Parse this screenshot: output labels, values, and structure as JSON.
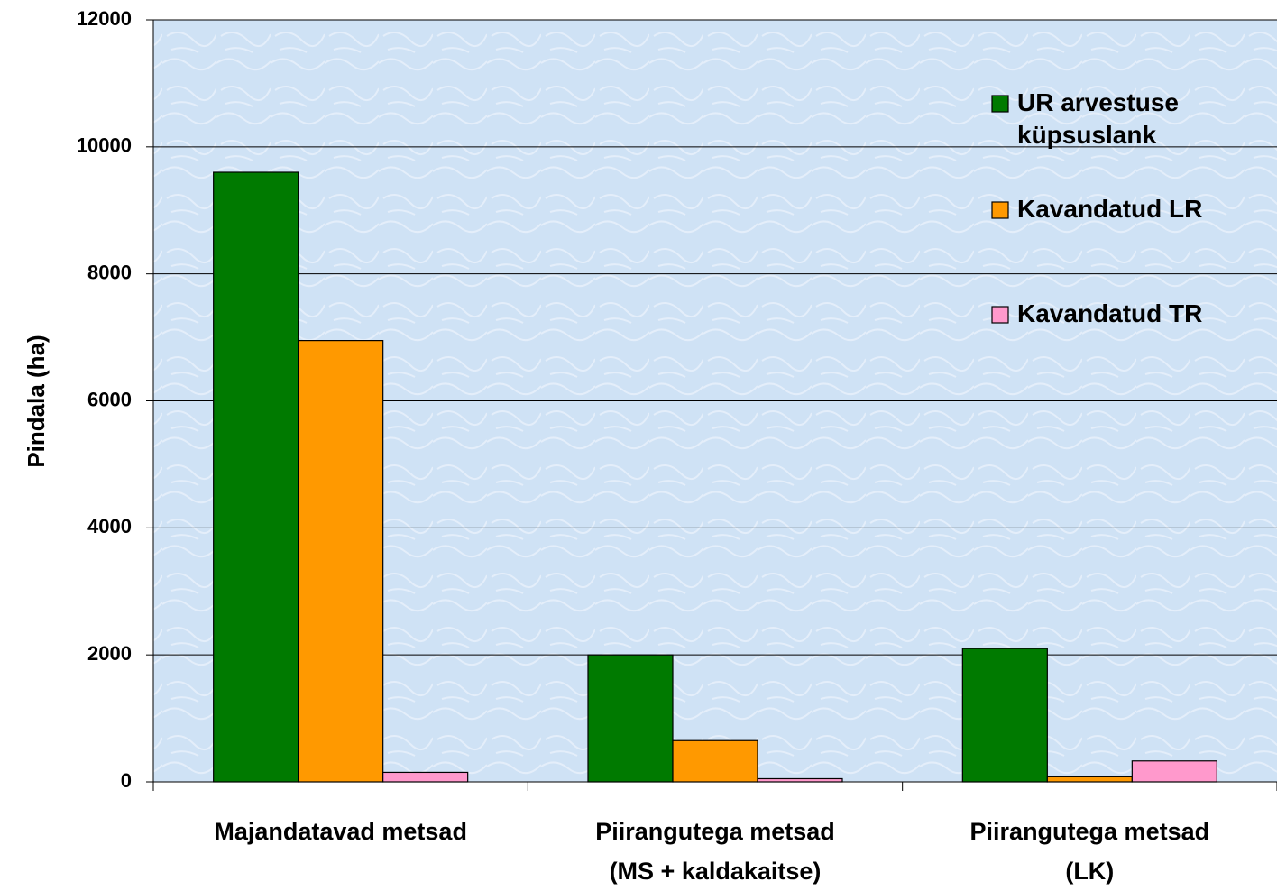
{
  "chart_data": {
    "type": "bar",
    "y_label": "Pindala (ha)",
    "categories": [
      "Majandatavad metsad",
      "Piirangutega metsad\n(MS + kaldakaitse)",
      "Piirangutega metsad\n(LK)"
    ],
    "series": [
      {
        "name": "UR arvestuse küpsuslank",
        "color": "#007a00",
        "values": [
          9600,
          2000,
          2100
        ]
      },
      {
        "name": "Kavandatud LR",
        "color": "#ff9900",
        "values": [
          6950,
          650,
          80
        ]
      },
      {
        "name": "Kavandatud TR",
        "color": "#ff99cc",
        "values": [
          150,
          50,
          330
        ]
      }
    ],
    "ylim": [
      0,
      12000
    ],
    "yticks": [
      0,
      2000,
      4000,
      6000,
      8000,
      10000,
      12000
    ],
    "grid": true,
    "legend": "top-right"
  }
}
